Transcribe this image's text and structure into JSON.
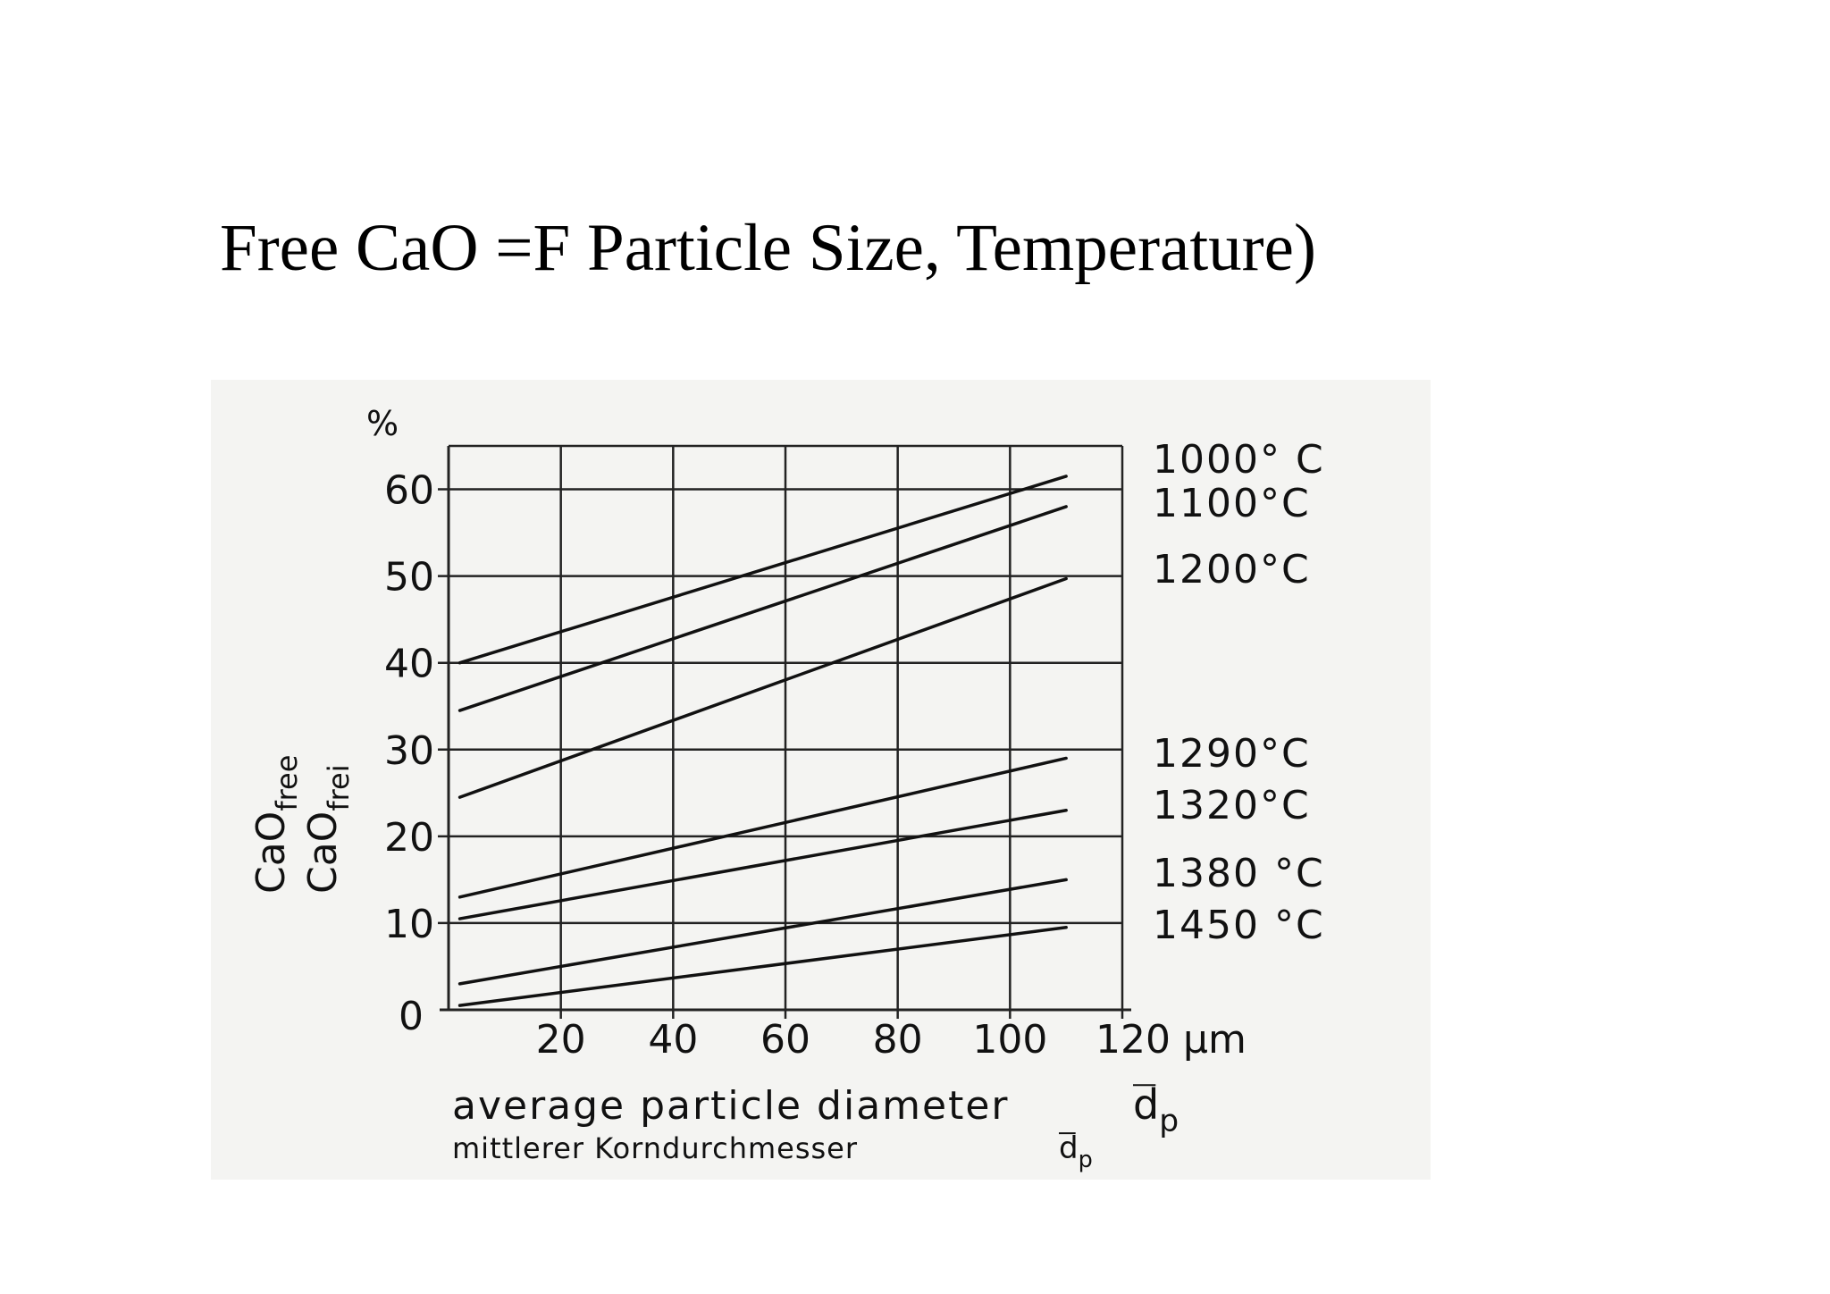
{
  "slide": {
    "title": "Free CaO =F Particle Size, Temperature)"
  },
  "chart_data": {
    "type": "line",
    "x": [
      2,
      110
    ],
    "xlim": [
      0,
      120
    ],
    "ylim": [
      0,
      65
    ],
    "xticks": [
      20,
      40,
      60,
      80,
      100,
      120
    ],
    "yticks": [
      0,
      10,
      20,
      30,
      40,
      50,
      60
    ],
    "xtick_unit": "µm",
    "ylabel_unit": "%",
    "xlabel_en": "average particle diameter",
    "xlabel_de": "mittlerer Korndurchmesser",
    "xlabel_symbol": "d",
    "xlabel_symbol_sub": "p",
    "ylabel_en": "CaO",
    "ylabel_en_sub": "free",
    "ylabel_de": "CaO",
    "ylabel_de_sub": "frei",
    "grid": true,
    "series": [
      {
        "name": "1000° C",
        "values": [
          40,
          61.5
        ]
      },
      {
        "name": "1100°C",
        "values": [
          34.5,
          58
        ]
      },
      {
        "name": "1200°C",
        "values": [
          24.5,
          49.7
        ]
      },
      {
        "name": "1290°C",
        "values": [
          13,
          29
        ]
      },
      {
        "name": "1320°C",
        "values": [
          10.5,
          23
        ]
      },
      {
        "name": "1380 °C",
        "values": [
          3,
          15
        ]
      },
      {
        "name": "1450 °C",
        "values": [
          0.5,
          9.5
        ]
      }
    ],
    "colors": {
      "line": "#111111",
      "grid": "#222222",
      "background": "#f4f4f2"
    }
  }
}
